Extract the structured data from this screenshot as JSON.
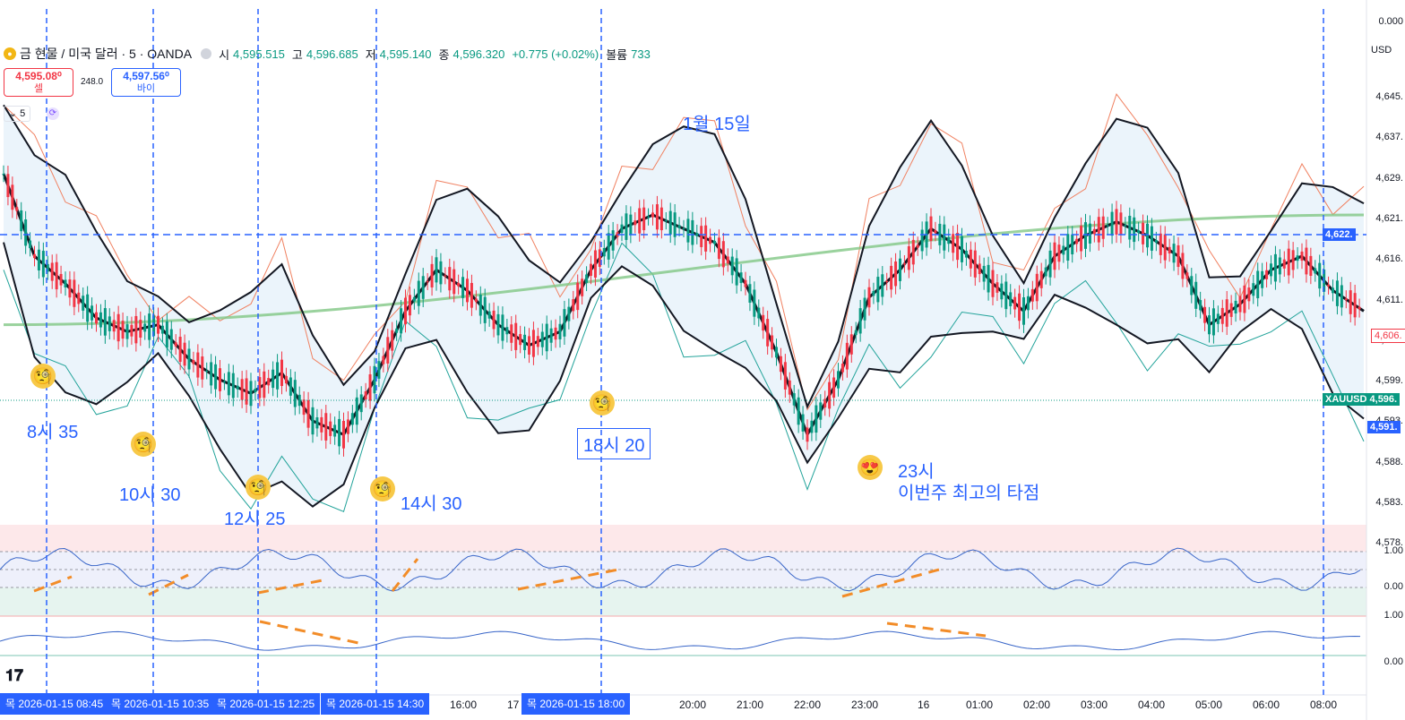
{
  "header": {
    "title": "금 현물 / 미국 달러 · 5 · OANDA",
    "open_label": "시",
    "open": "4,595.515",
    "high_label": "고",
    "high": "4,596.685",
    "low_label": "저",
    "low": "4,595.140",
    "close_label": "종",
    "close": "4,596.320",
    "change": "+0.775 (+0.02%)",
    "volume_label": "볼륨",
    "volume": "733"
  },
  "trade": {
    "sell_price": "4,595.08⁰",
    "sell_label": "셀",
    "spread": "248.0",
    "buy_price": "4,597.56⁰",
    "buy_label": "바이"
  },
  "interval": "5",
  "currency": "USD",
  "symbol_tag": "XAUUSD",
  "annotations": {
    "date": "1월 15일",
    "t0835": "8시 35",
    "t1030": "10시 30",
    "t1225": "12시 25",
    "t1430": "14시 30",
    "t1820": "18시 20",
    "t23": "23시",
    "best": "이번주 최고의 타점"
  },
  "price_axis": [
    "0.000",
    "4,645.",
    "4,637.",
    "4,629.",
    "4,621.",
    "4,616.",
    "4,611.",
    "4,605.",
    "4,599.",
    "4,593.",
    "4,588.",
    "4,583.",
    "4,578."
  ],
  "price_tags": {
    "hline": "4,622.",
    "last_red": "4,606.",
    "xau": "4,596.",
    "blue": "4,591."
  },
  "osc_axis": {
    "osc1_top": "1.00",
    "osc1_bottom": "0.00",
    "osc2_top": "1.00",
    "osc2_bottom": "0.00"
  },
  "time_axis": {
    "highlighted": [
      "목 2026-01-15   08:45",
      "목 2026-01-15   10:35",
      "목 2026-01-15   12:25",
      "목 2026-01-15   14:30",
      "목 2026-01-15   18:00"
    ],
    "ticks": [
      "16:00",
      "17",
      "20:00",
      "21:00",
      "22:00",
      "23:00",
      "16",
      "01:00",
      "02:00",
      "03:00",
      "04:00",
      "05:00",
      "06:00",
      "08:00"
    ]
  },
  "chart_data": {
    "type": "line",
    "title": "금 현물 / 미국 달러 · 5 · OANDA",
    "ylim": [
      4575,
      4650
    ],
    "x_labels": [
      "08:45",
      "10:35",
      "12:25",
      "14:30",
      "16:00",
      "18:00",
      "20:00",
      "21:00",
      "22:00",
      "23:00",
      "16",
      "01:00",
      "02:00",
      "03:00",
      "04:00",
      "05:00",
      "06:00",
      "08:00"
    ],
    "series": [
      {
        "name": "",
        "values": [
          4626,
          4614,
          4610,
          4605,
          4603,
          4604,
          4599,
          4596,
          4594,
          4597,
          4590,
          4588,
          4596,
          4606,
          4612,
          4609,
          4604,
          4601,
          4603,
          4612,
          4618,
          4620,
          4618,
          4616,
          4610,
          4600,
          4588,
          4596,
          4608,
          4612,
          4618,
          4615,
          4610,
          4606,
          4614,
          4617,
          4619,
          4617,
          4614,
          4604,
          4607,
          4612,
          4614,
          4609,
          4606
        ]
      }
    ],
    "grid": false
  }
}
